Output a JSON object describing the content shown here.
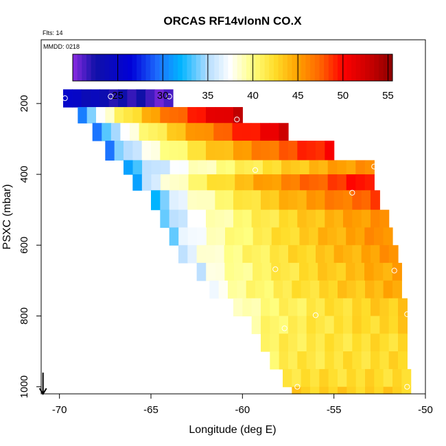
{
  "chart_data": {
    "type": "heatmap",
    "title": "ORCAS RF14vlonN CO.X",
    "flights_note": "Flts: 14",
    "date_note": "MMDD: 0218",
    "xlabel": "Longitude (deg E)",
    "ylabel": "PSXC (mbar)",
    "xlim": [
      -71,
      -50
    ],
    "ylim": [
      1020,
      20
    ],
    "x_ticks": [
      -70,
      -65,
      -60,
      -55,
      -50
    ],
    "x_tick_labels": [
      "-70",
      "-65",
      "-60",
      "-55",
      "-50"
    ],
    "y_ticks": [
      200,
      400,
      600,
      800,
      1000
    ],
    "y_tick_labels": [
      "200",
      "400",
      "600",
      "800",
      "1000"
    ],
    "colorbar": {
      "min": 20,
      "max": 55.5,
      "ticks": [
        25,
        30,
        35,
        40,
        45,
        50,
        55
      ],
      "tick_labels": [
        "25",
        "30",
        "35",
        "40",
        "45",
        "50",
        "55"
      ],
      "color_stops": [
        {
          "v": 20,
          "color": "#8a2be2"
        },
        {
          "v": 22.5,
          "color": "#1010a8"
        },
        {
          "v": 26.5,
          "color": "#0000d8"
        },
        {
          "v": 29.5,
          "color": "#1e70ff"
        },
        {
          "v": 32,
          "color": "#00b4ff"
        },
        {
          "v": 35,
          "color": "#b4dcff"
        },
        {
          "v": 37.5,
          "color": "#ffffff"
        },
        {
          "v": 40,
          "color": "#ffff80"
        },
        {
          "v": 42.5,
          "color": "#ffdc28"
        },
        {
          "v": 45,
          "color": "#ffa000"
        },
        {
          "v": 47.5,
          "color": "#ff6400"
        },
        {
          "v": 50,
          "color": "#ff0000"
        },
        {
          "v": 53,
          "color": "#c80000"
        },
        {
          "v": 55.5,
          "color": "#8b0000"
        }
      ]
    },
    "rows": [
      {
        "p_top": 160,
        "p_bot": 210,
        "lon_min": -69.8,
        "lon_max": -63.8,
        "v_left": 26,
        "v_right": 21
      },
      {
        "p_top": 210,
        "p_bot": 255,
        "lon_min": -69.0,
        "lon_max": -60.0,
        "v_left": 30,
        "v_right": 53
      },
      {
        "p_top": 255,
        "p_bot": 305,
        "lon_min": -68.2,
        "lon_max": -57.5,
        "v_left": 29,
        "v_right": 52
      },
      {
        "p_top": 305,
        "p_bot": 360,
        "lon_min": -67.5,
        "lon_max": -55.0,
        "v_left": 30,
        "v_right": 50
      },
      {
        "p_top": 360,
        "p_bot": 400,
        "lon_min": -66.5,
        "lon_max": -52.8,
        "v_left": 31,
        "v_right": 46
      },
      {
        "p_top": 400,
        "p_bot": 445,
        "lon_min": -66.0,
        "lon_max": -52.8,
        "v_left": 32,
        "v_right": 50
      },
      {
        "p_top": 445,
        "p_bot": 500,
        "lon_min": -65.0,
        "lon_max": -52.5,
        "v_left": 32,
        "v_right": 48
      },
      {
        "p_top": 500,
        "p_bot": 550,
        "lon_min": -64.5,
        "lon_max": -52.0,
        "v_left": 33,
        "v_right": 46
      },
      {
        "p_top": 550,
        "p_bot": 600,
        "lon_min": -64.0,
        "lon_max": -51.8,
        "v_left": 34,
        "v_right": 46
      },
      {
        "p_top": 600,
        "p_bot": 650,
        "lon_min": -63.5,
        "lon_max": -51.5,
        "v_left": 35,
        "v_right": 45.5
      },
      {
        "p_top": 650,
        "p_bot": 700,
        "lon_min": -62.5,
        "lon_max": -51.3,
        "v_left": 36,
        "v_right": 45
      },
      {
        "p_top": 700,
        "p_bot": 750,
        "lon_min": -61.8,
        "lon_max": -51.3,
        "v_left": 37,
        "v_right": 44.5
      },
      {
        "p_top": 750,
        "p_bot": 800,
        "lon_min": -60.5,
        "lon_max": -51.0,
        "v_left": 38,
        "v_right": 43.5
      },
      {
        "p_top": 800,
        "p_bot": 850,
        "lon_min": -59.5,
        "lon_max": -51.0,
        "v_left": 39.5,
        "v_right": 43
      },
      {
        "p_top": 850,
        "p_bot": 900,
        "lon_min": -59.0,
        "lon_max": -51.0,
        "v_left": 40.5,
        "v_right": 42.5
      },
      {
        "p_top": 900,
        "p_bot": 950,
        "lon_min": -58.5,
        "lon_max": -51.0,
        "v_left": 41,
        "v_right": 42.5
      },
      {
        "p_top": 950,
        "p_bot": 1000,
        "lon_min": -57.8,
        "lon_max": -50.8,
        "v_left": 42,
        "v_right": 42.5
      },
      {
        "p_top": 1000,
        "p_bot": 1020,
        "lon_min": -57.3,
        "lon_max": -50.8,
        "v_left": 43,
        "v_right": 43
      }
    ],
    "markers": [
      {
        "lon": -69.7,
        "p": 185
      },
      {
        "lon": -67.2,
        "p": 180
      },
      {
        "lon": -64.0,
        "p": 180
      },
      {
        "lon": -60.3,
        "p": 245
      },
      {
        "lon": -59.3,
        "p": 388
      },
      {
        "lon": -54.0,
        "p": 452
      },
      {
        "lon": -52.8,
        "p": 378
      },
      {
        "lon": -58.2,
        "p": 668
      },
      {
        "lon": -51.7,
        "p": 672
      },
      {
        "lon": -56.0,
        "p": 798
      },
      {
        "lon": -57.7,
        "p": 835
      },
      {
        "lon": -51.0,
        "p": 795
      },
      {
        "lon": -57.0,
        "p": 1000
      },
      {
        "lon": -51.0,
        "p": 1000
      }
    ],
    "wind_arrow": {
      "lon": -70.9,
      "p_start": 960,
      "p_end": 1020
    }
  }
}
